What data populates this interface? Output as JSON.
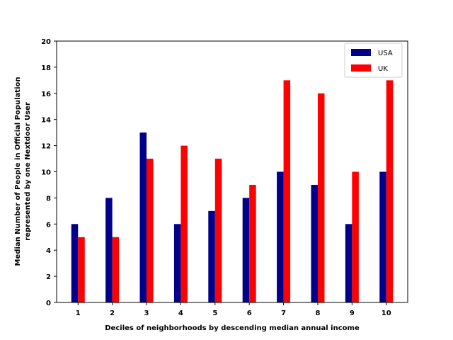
{
  "chart_data": {
    "type": "bar",
    "title": "",
    "xlabel": "Deciles of neighborhoods by descending median annual income",
    "ylabel_lines": [
      "Median Number of People in Official Population",
      "represented by one Nextdoor User"
    ],
    "categories": [
      "1",
      "2",
      "3",
      "4",
      "5",
      "6",
      "7",
      "8",
      "9",
      "10"
    ],
    "ylim": [
      0,
      20
    ],
    "yticks": [
      "0",
      "2",
      "4",
      "6",
      "8",
      "10",
      "12",
      "14",
      "16",
      "18",
      "20"
    ],
    "grid": false,
    "legend_position": "top-right",
    "series": [
      {
        "name": "USA",
        "color": "#00008b",
        "values": [
          6,
          8,
          13,
          6,
          7,
          8,
          10,
          9,
          6,
          10
        ]
      },
      {
        "name": "UK",
        "color": "#ff0000",
        "values": [
          5,
          5,
          11,
          12,
          11,
          9,
          17,
          16,
          10,
          17
        ]
      }
    ]
  }
}
